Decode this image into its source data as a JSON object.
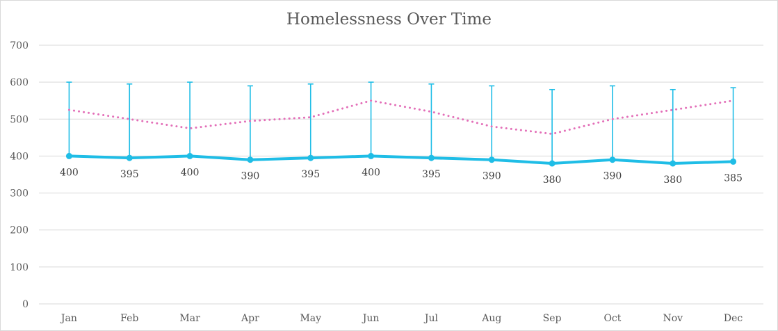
{
  "chart_data": {
    "type": "line",
    "title": "Homelessness Over Time",
    "xlabel": "",
    "ylabel": "",
    "categories": [
      "Jan",
      "Feb",
      "Mar",
      "Apr",
      "May",
      "Jun",
      "Jul",
      "Aug",
      "Sep",
      "Oct",
      "Nov",
      "Dec"
    ],
    "ylim": [
      0,
      700
    ],
    "yticks": [
      "0",
      "100",
      "200",
      "300",
      "400",
      "500",
      "600",
      "700"
    ],
    "grid": true,
    "legend": "none",
    "series": [
      {
        "values": [
          400,
          395,
          400,
          390,
          395,
          400,
          395,
          390,
          380,
          390,
          380,
          385
        ],
        "data_labels": [
          "400",
          "395",
          "400",
          "390",
          "395",
          "400",
          "395",
          "390",
          "380",
          "390",
          "380",
          "385"
        ],
        "error_upper": [
          600,
          595,
          600,
          590,
          595,
          600,
          595,
          590,
          580,
          590,
          580,
          585
        ],
        "color": "#1fbde6",
        "style": "solid",
        "markers": true
      },
      {
        "values": [
          525,
          500,
          475,
          495,
          505,
          550,
          520,
          480,
          460,
          500,
          525,
          550
        ],
        "color": "#e36fb8",
        "style": "dotted",
        "markers": false
      }
    ]
  }
}
